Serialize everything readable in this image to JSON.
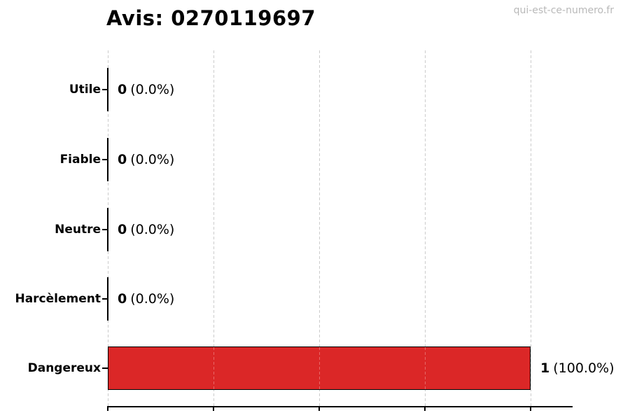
{
  "chart_data": {
    "type": "bar",
    "orientation": "horizontal",
    "title": "Avis: 0270119697",
    "watermark": "qui-est-ce-numero.fr",
    "categories": [
      "Utile",
      "Fiable",
      "Neutre",
      "Harcèlement",
      "Dangereux"
    ],
    "values": [
      0,
      0,
      0,
      0,
      1
    ],
    "value_labels": [
      {
        "count": "0",
        "pct": "(0.0%)"
      },
      {
        "count": "0",
        "pct": "(0.0%)"
      },
      {
        "count": "0",
        "pct": "(0.0%)"
      },
      {
        "count": "0",
        "pct": "(0.0%)"
      },
      {
        "count": "1",
        "pct": "(100.0%)"
      }
    ],
    "xlabel": "",
    "ylabel": "",
    "xlim": [
      0,
      1.1
    ],
    "xticks": [
      0,
      0.25,
      0.5,
      0.75,
      1.0
    ],
    "xtick_labels_visible": false,
    "grid": true,
    "legend": null,
    "colors": {
      "bar_fill": "#db2727",
      "bar_edge": "#000000",
      "gridline": "#cccccc",
      "axis": "#000000",
      "text": "#000000",
      "watermark": "#b9b9b9"
    }
  }
}
